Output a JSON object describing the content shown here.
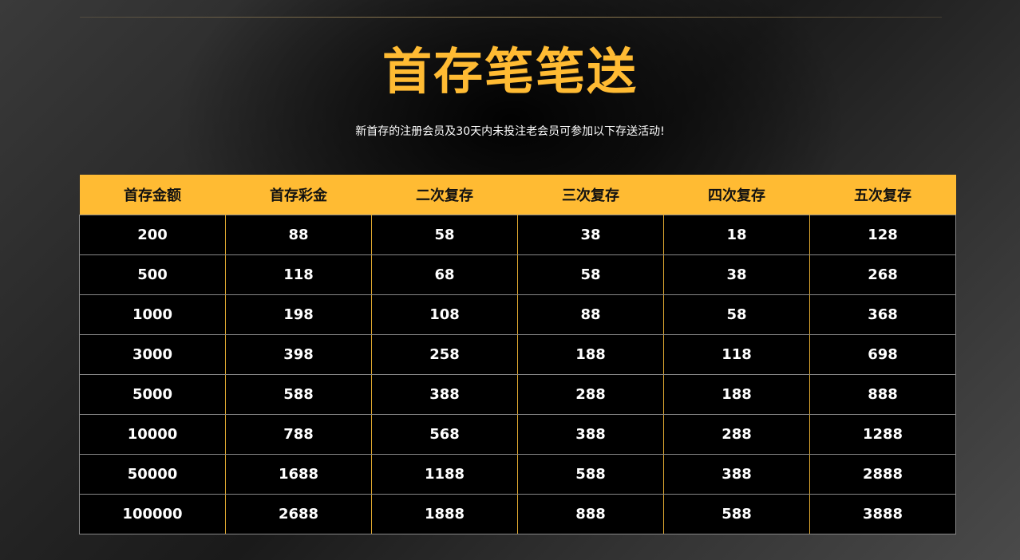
{
  "title": "首存笔笔送",
  "subtitle": "新首存的注册会员及30天内未投注老会员可参加以下存送活动!",
  "colors": {
    "accent": "#ffbb33",
    "table_bg": "#000000"
  },
  "table": {
    "headers": [
      "首存金额",
      "首存彩金",
      "二次复存",
      "三次复存",
      "四次复存",
      "五次复存"
    ],
    "rows": [
      [
        "200",
        "88",
        "58",
        "38",
        "18",
        "128"
      ],
      [
        "500",
        "118",
        "68",
        "58",
        "38",
        "268"
      ],
      [
        "1000",
        "198",
        "108",
        "88",
        "58",
        "368"
      ],
      [
        "3000",
        "398",
        "258",
        "188",
        "118",
        "698"
      ],
      [
        "5000",
        "588",
        "388",
        "288",
        "188",
        "888"
      ],
      [
        "10000",
        "788",
        "568",
        "388",
        "288",
        "1288"
      ],
      [
        "50000",
        "1688",
        "1188",
        "588",
        "388",
        "2888"
      ],
      [
        "100000",
        "2688",
        "1888",
        "888",
        "588",
        "3888"
      ]
    ]
  }
}
